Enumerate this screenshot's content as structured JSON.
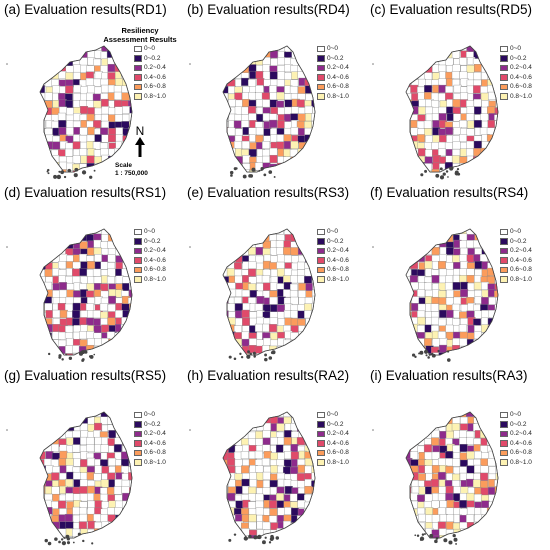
{
  "panels": [
    {
      "title": "(a) Evaluation results(RD1)",
      "seed": 11
    },
    {
      "title": "(b) Evaluation results(RD4)",
      "seed": 23
    },
    {
      "title": "(c) Evaluation results(RD5)",
      "seed": 37
    },
    {
      "title": "(d) Evaluation results(RS1)",
      "seed": 41
    },
    {
      "title": "(e) Evaluation results(RS3)",
      "seed": 53
    },
    {
      "title": "(f) Evaluation results(RS4)",
      "seed": 67
    },
    {
      "title": "(g) Evaluation results(RS5)",
      "seed": 71
    },
    {
      "title": "(h) Evaluation results(RA2)",
      "seed": 83
    },
    {
      "title": "(i) Evaluation results(RA3)",
      "seed": 97
    }
  ],
  "legend": {
    "title_line1": "Resiliency",
    "title_line2": "Assessment Results",
    "items": [
      {
        "label": "0~0",
        "color": "#ffffff"
      },
      {
        "label": "0~0.2",
        "color": "#2b0a5e"
      },
      {
        "label": "0.2~0.4",
        "color": "#8e2b8c"
      },
      {
        "label": "0.4~0.6",
        "color": "#e04a6a"
      },
      {
        "label": "0.6~0.8",
        "color": "#fb9c5c"
      },
      {
        "label": "0.8~1.0",
        "color": "#fdf2b3"
      }
    ]
  },
  "north_label": "N",
  "scale_label": "Scale",
  "scale_value": "1 : 750,000",
  "corner_mark": "°"
}
